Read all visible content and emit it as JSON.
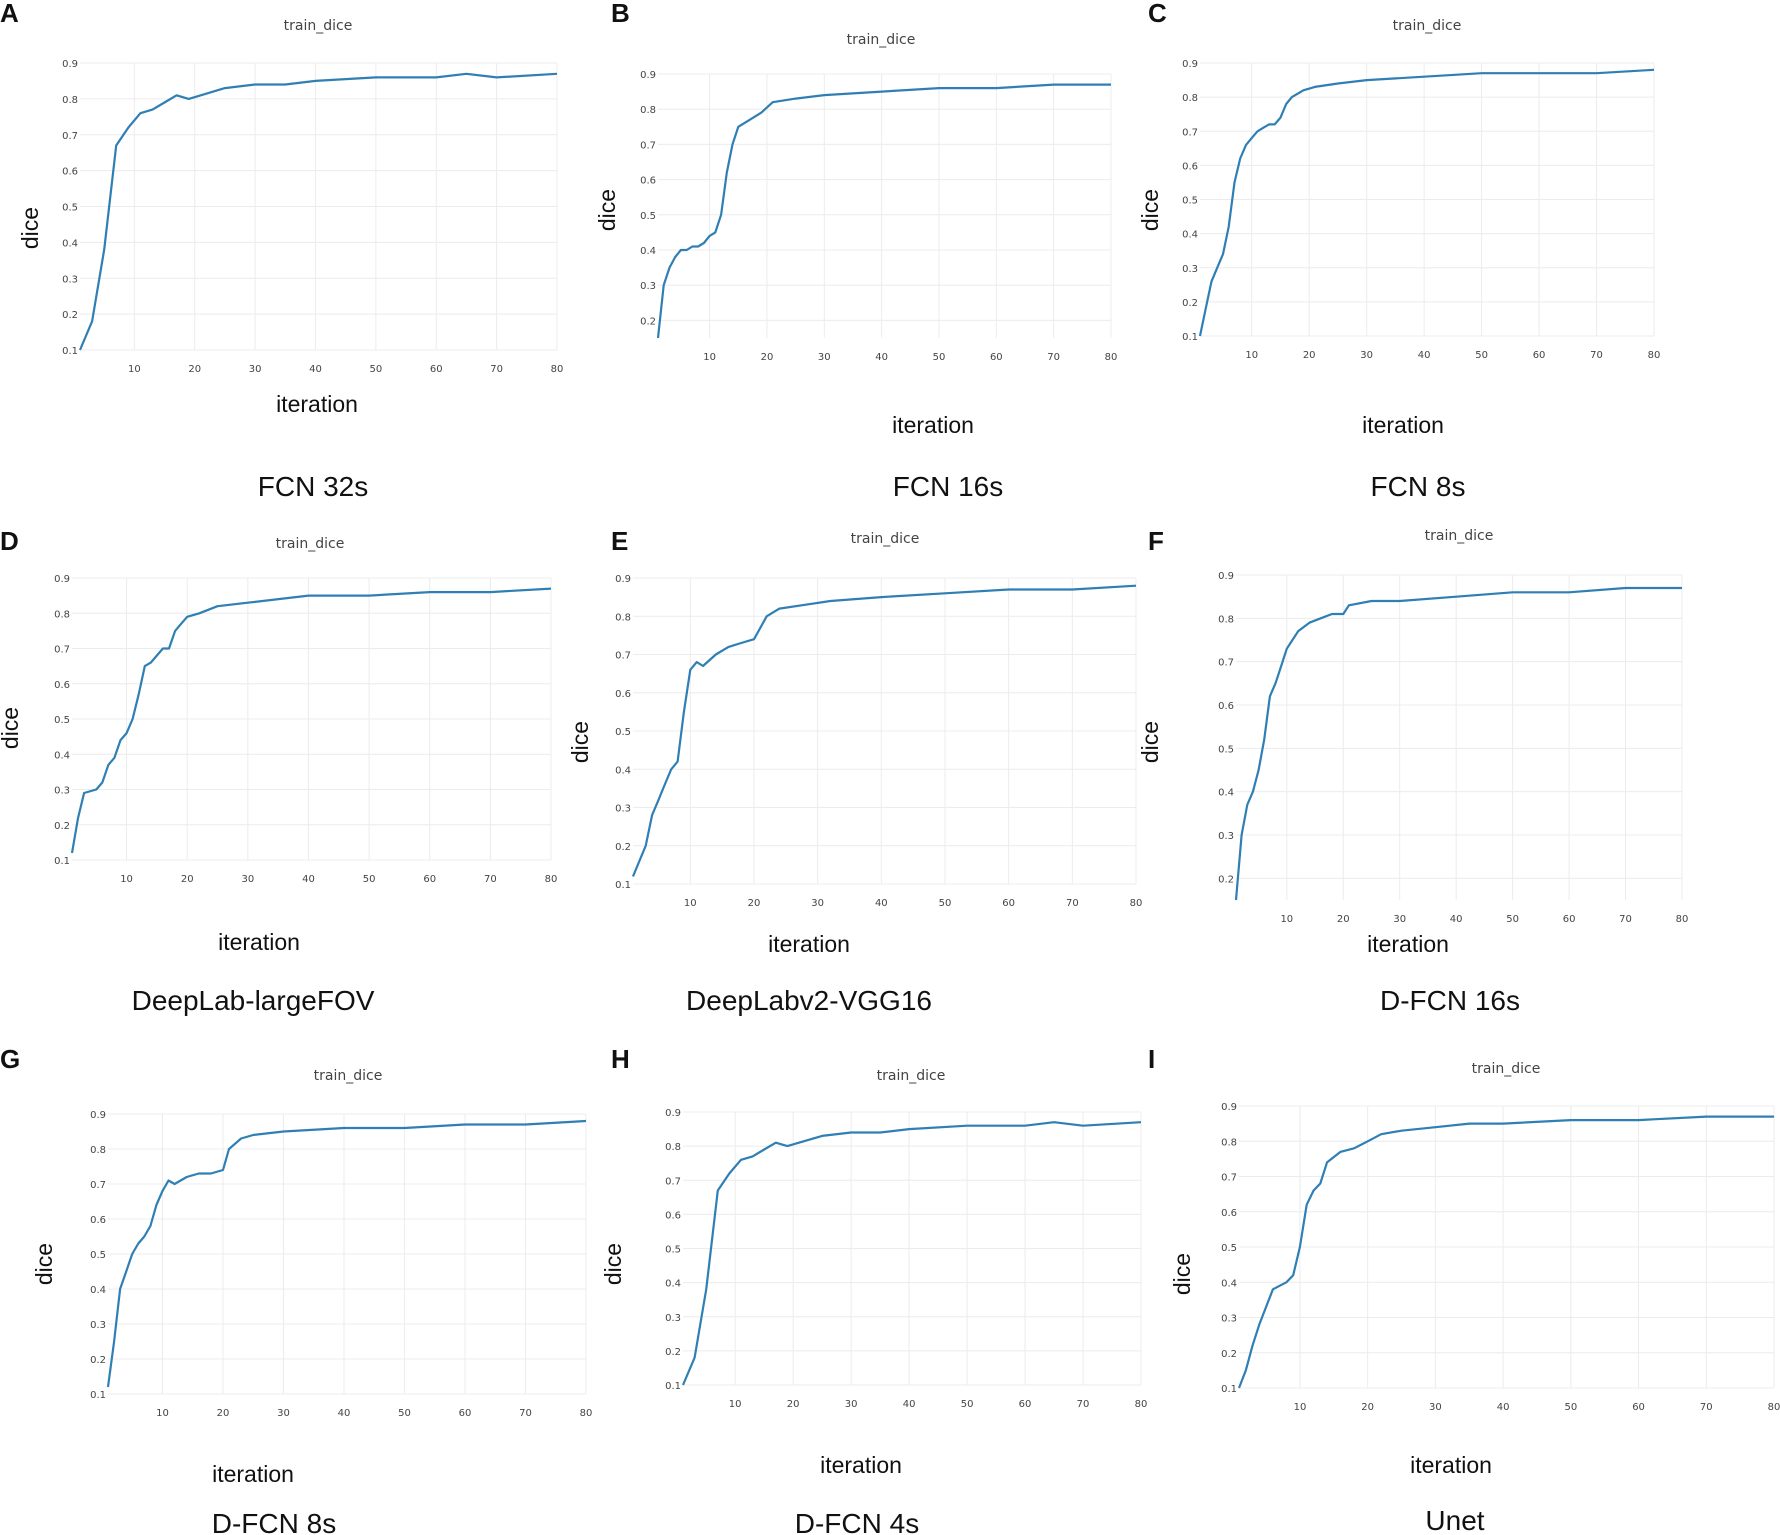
{
  "chart_data": [
    {
      "type": "line",
      "panel": "A",
      "title": "train_dice",
      "xlabel": "iteration",
      "ylabel": "dice",
      "model": "FCN 32s",
      "xlim": [
        1,
        80
      ],
      "ylim": [
        0.1,
        0.9
      ],
      "xticks": [
        10,
        20,
        30,
        40,
        50,
        60,
        70,
        80
      ],
      "yticks": [
        0.1,
        0.2,
        0.3,
        0.4,
        0.5,
        0.6,
        0.7,
        0.8,
        0.9
      ],
      "series": [
        {
          "name": "train_dice",
          "x": [
            1,
            3,
            5,
            7,
            9,
            11,
            13,
            15,
            17,
            19,
            21,
            23,
            25,
            30,
            35,
            40,
            50,
            60,
            65,
            70,
            80
          ],
          "y": [
            0.1,
            0.18,
            0.38,
            0.67,
            0.72,
            0.76,
            0.77,
            0.79,
            0.81,
            0.8,
            0.81,
            0.82,
            0.83,
            0.84,
            0.84,
            0.85,
            0.86,
            0.86,
            0.87,
            0.86,
            0.87
          ]
        }
      ]
    },
    {
      "type": "line",
      "panel": "B",
      "title": "train_dice",
      "xlabel": "iteration",
      "ylabel": "dice",
      "model": "FCN 16s",
      "xlim": [
        1,
        80
      ],
      "ylim": [
        0.15,
        0.9
      ],
      "xticks": [
        10,
        20,
        30,
        40,
        50,
        60,
        70,
        80
      ],
      "yticks": [
        0.2,
        0.3,
        0.4,
        0.5,
        0.6,
        0.7,
        0.8,
        0.9
      ],
      "series": [
        {
          "name": "train_dice",
          "x": [
            1,
            2,
            3,
            4,
            5,
            6,
            7,
            8,
            9,
            10,
            11,
            12,
            13,
            14,
            15,
            17,
            19,
            21,
            25,
            30,
            40,
            50,
            60,
            70,
            80
          ],
          "y": [
            0.15,
            0.3,
            0.35,
            0.38,
            0.4,
            0.4,
            0.41,
            0.41,
            0.42,
            0.44,
            0.45,
            0.5,
            0.62,
            0.7,
            0.75,
            0.77,
            0.79,
            0.82,
            0.83,
            0.84,
            0.85,
            0.86,
            0.86,
            0.87,
            0.87
          ]
        }
      ]
    },
    {
      "type": "line",
      "panel": "C",
      "title": "train_dice",
      "xlabel": "iteration",
      "ylabel": "dice",
      "model": "FCN 8s",
      "xlim": [
        1,
        80
      ],
      "ylim": [
        0.1,
        0.9
      ],
      "xticks": [
        10,
        20,
        30,
        40,
        50,
        60,
        70,
        80
      ],
      "yticks": [
        0.1,
        0.2,
        0.3,
        0.4,
        0.5,
        0.6,
        0.7,
        0.8,
        0.9
      ],
      "series": [
        {
          "name": "train_dice",
          "x": [
            1,
            2,
            3,
            4,
            5,
            6,
            7,
            8,
            9,
            10,
            11,
            12,
            13,
            14,
            15,
            16,
            17,
            19,
            21,
            25,
            30,
            40,
            50,
            60,
            70,
            80
          ],
          "y": [
            0.1,
            0.18,
            0.26,
            0.3,
            0.34,
            0.42,
            0.55,
            0.62,
            0.66,
            0.68,
            0.7,
            0.71,
            0.72,
            0.72,
            0.74,
            0.78,
            0.8,
            0.82,
            0.83,
            0.84,
            0.85,
            0.86,
            0.87,
            0.87,
            0.87,
            0.88
          ]
        }
      ]
    },
    {
      "type": "line",
      "panel": "D",
      "title": "train_dice",
      "xlabel": "iteration",
      "ylabel": "dice",
      "model": "DeepLab-largeFOV",
      "xlim": [
        1,
        80
      ],
      "ylim": [
        0.1,
        0.9
      ],
      "xticks": [
        10,
        20,
        30,
        40,
        50,
        60,
        70,
        80
      ],
      "yticks": [
        0.1,
        0.2,
        0.3,
        0.4,
        0.5,
        0.6,
        0.7,
        0.8,
        0.9
      ],
      "series": [
        {
          "name": "train_dice",
          "x": [
            1,
            2,
            3,
            5,
            6,
            7,
            8,
            9,
            10,
            11,
            12,
            13,
            14,
            15,
            16,
            17,
            18,
            19,
            20,
            22,
            25,
            30,
            40,
            50,
            60,
            70,
            80
          ],
          "y": [
            0.12,
            0.22,
            0.29,
            0.3,
            0.32,
            0.37,
            0.39,
            0.44,
            0.46,
            0.5,
            0.57,
            0.65,
            0.66,
            0.68,
            0.7,
            0.7,
            0.75,
            0.77,
            0.79,
            0.8,
            0.82,
            0.83,
            0.85,
            0.85,
            0.86,
            0.86,
            0.87
          ]
        }
      ]
    },
    {
      "type": "line",
      "panel": "E",
      "title": "train_dice",
      "xlabel": "iteration",
      "ylabel": "dice",
      "model": "DeepLabv2-VGG16",
      "xlim": [
        1,
        80
      ],
      "ylim": [
        0.1,
        0.9
      ],
      "xticks": [
        10,
        20,
        30,
        40,
        50,
        60,
        70,
        80
      ],
      "yticks": [
        0.1,
        0.2,
        0.3,
        0.4,
        0.5,
        0.6,
        0.7,
        0.8,
        0.9
      ],
      "series": [
        {
          "name": "train_dice",
          "x": [
            1,
            2,
            3,
            4,
            5,
            6,
            7,
            8,
            9,
            10,
            11,
            12,
            14,
            16,
            18,
            20,
            22,
            24,
            28,
            32,
            40,
            50,
            60,
            70,
            80
          ],
          "y": [
            0.12,
            0.16,
            0.2,
            0.28,
            0.32,
            0.36,
            0.4,
            0.42,
            0.55,
            0.66,
            0.68,
            0.67,
            0.7,
            0.72,
            0.73,
            0.74,
            0.8,
            0.82,
            0.83,
            0.84,
            0.85,
            0.86,
            0.87,
            0.87,
            0.88
          ]
        }
      ]
    },
    {
      "type": "line",
      "panel": "F",
      "title": "train_dice",
      "xlabel": "iteration",
      "ylabel": "dice",
      "model": "D-FCN 16s",
      "xlim": [
        1,
        80
      ],
      "ylim": [
        0.15,
        0.9
      ],
      "xticks": [
        10,
        20,
        30,
        40,
        50,
        60,
        70,
        80
      ],
      "yticks": [
        0.2,
        0.3,
        0.4,
        0.5,
        0.6,
        0.7,
        0.8,
        0.9
      ],
      "series": [
        {
          "name": "train_dice",
          "x": [
            1,
            2,
            3,
            4,
            5,
            6,
            7,
            8,
            9,
            10,
            12,
            14,
            16,
            18,
            20,
            21,
            25,
            30,
            40,
            50,
            60,
            70,
            80
          ],
          "y": [
            0.15,
            0.3,
            0.37,
            0.4,
            0.45,
            0.52,
            0.62,
            0.65,
            0.69,
            0.73,
            0.77,
            0.79,
            0.8,
            0.81,
            0.81,
            0.83,
            0.84,
            0.84,
            0.85,
            0.86,
            0.86,
            0.87,
            0.87
          ]
        }
      ]
    },
    {
      "type": "line",
      "panel": "G",
      "title": "train_dice",
      "xlabel": "iteration",
      "ylabel": "dice",
      "model": "D-FCN 8s",
      "xlim": [
        1,
        80
      ],
      "ylim": [
        0.1,
        0.9
      ],
      "xticks": [
        10,
        20,
        30,
        40,
        50,
        60,
        70,
        80
      ],
      "yticks": [
        0.1,
        0.2,
        0.3,
        0.4,
        0.5,
        0.6,
        0.7,
        0.8,
        0.9
      ],
      "series": [
        {
          "name": "train_dice",
          "x": [
            1,
            2,
            3,
            4,
            5,
            6,
            7,
            8,
            9,
            10,
            11,
            12,
            14,
            16,
            18,
            20,
            21,
            23,
            25,
            30,
            40,
            50,
            60,
            70,
            80
          ],
          "y": [
            0.12,
            0.25,
            0.4,
            0.45,
            0.5,
            0.53,
            0.55,
            0.58,
            0.64,
            0.68,
            0.71,
            0.7,
            0.72,
            0.73,
            0.73,
            0.74,
            0.8,
            0.83,
            0.84,
            0.85,
            0.86,
            0.86,
            0.87,
            0.87,
            0.88
          ]
        }
      ]
    },
    {
      "type": "line",
      "panel": "H",
      "title": "train_dice",
      "xlabel": "iteration",
      "ylabel": "dice",
      "model": "D-FCN 4s",
      "xlim": [
        1,
        80
      ],
      "ylim": [
        0.1,
        0.9
      ],
      "xticks": [
        10,
        20,
        30,
        40,
        50,
        60,
        70,
        80
      ],
      "yticks": [
        0.1,
        0.2,
        0.3,
        0.4,
        0.5,
        0.6,
        0.7,
        0.8,
        0.9
      ],
      "series": [
        {
          "name": "train_dice",
          "x": [
            1,
            3,
            5,
            7,
            9,
            11,
            13,
            15,
            17,
            19,
            21,
            23,
            25,
            30,
            35,
            40,
            50,
            60,
            65,
            70,
            80
          ],
          "y": [
            0.1,
            0.18,
            0.38,
            0.67,
            0.72,
            0.76,
            0.77,
            0.79,
            0.81,
            0.8,
            0.81,
            0.82,
            0.83,
            0.84,
            0.84,
            0.85,
            0.86,
            0.86,
            0.87,
            0.86,
            0.87
          ]
        }
      ]
    },
    {
      "type": "line",
      "panel": "I",
      "title": "train_dice",
      "xlabel": "iteration",
      "ylabel": "dice",
      "model": "Unet",
      "xlim": [
        1,
        80
      ],
      "ylim": [
        0.1,
        0.9
      ],
      "xticks": [
        10,
        20,
        30,
        40,
        50,
        60,
        70,
        80
      ],
      "yticks": [
        0.1,
        0.2,
        0.3,
        0.4,
        0.5,
        0.6,
        0.7,
        0.8,
        0.9
      ],
      "series": [
        {
          "name": "train_dice",
          "x": [
            1,
            2,
            3,
            4,
            5,
            6,
            7,
            8,
            9,
            10,
            11,
            12,
            13,
            14,
            16,
            18,
            20,
            22,
            25,
            30,
            35,
            40,
            50,
            60,
            70,
            80
          ],
          "y": [
            0.1,
            0.15,
            0.22,
            0.28,
            0.33,
            0.38,
            0.39,
            0.4,
            0.42,
            0.5,
            0.62,
            0.66,
            0.68,
            0.74,
            0.77,
            0.78,
            0.8,
            0.82,
            0.83,
            0.84,
            0.85,
            0.85,
            0.86,
            0.86,
            0.87,
            0.87
          ]
        }
      ]
    }
  ]
}
